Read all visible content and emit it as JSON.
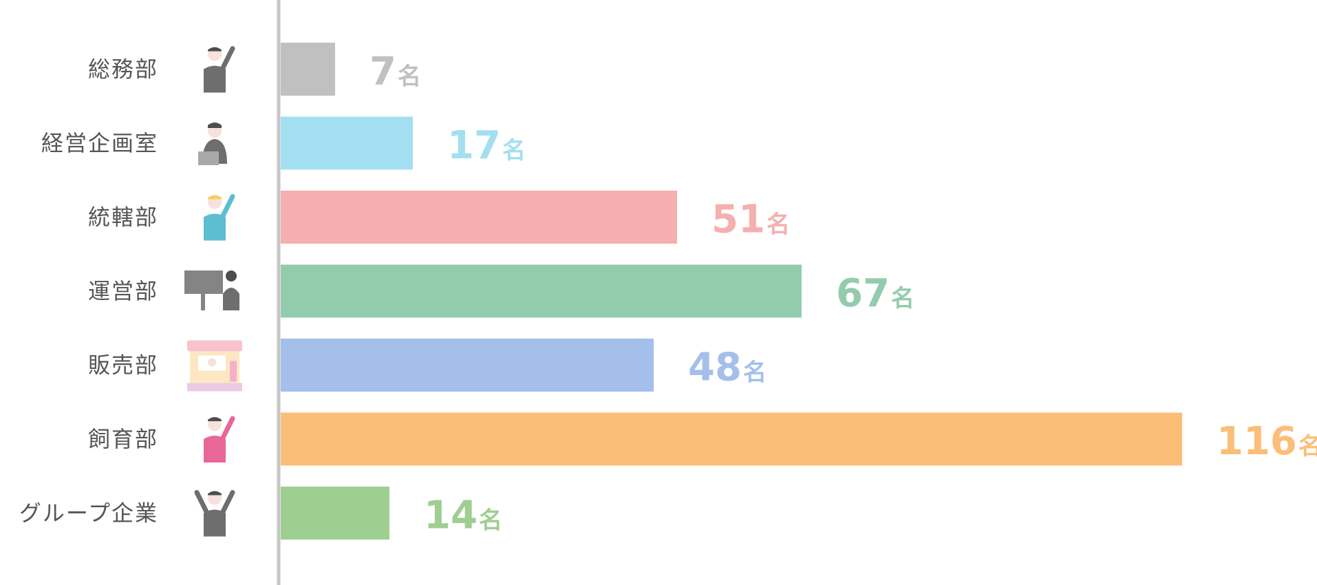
{
  "chart_data": {
    "type": "bar",
    "orientation": "horizontal",
    "categories": [
      "総務部",
      "経営企画室",
      "統轄部",
      "運営部",
      "販売部",
      "飼育部",
      "グループ企業"
    ],
    "values": [
      7,
      17,
      51,
      67,
      48,
      116,
      14
    ],
    "unit": "名",
    "colors": [
      "#c0c0c0",
      "#a3dff0",
      "#f4afae",
      "#93ccad",
      "#a3bfea",
      "#fbbe78",
      "#9fce91"
    ],
    "icons": [
      "presenter-icon",
      "laptop-worker-icon",
      "hardhat-worker-icon",
      "monitor-worker-icon",
      "shop-stall-icon",
      "zookeeper-icon",
      "cheering-person-icon"
    ],
    "xlim": [
      0,
      116
    ],
    "grid": false,
    "legend": "none"
  }
}
